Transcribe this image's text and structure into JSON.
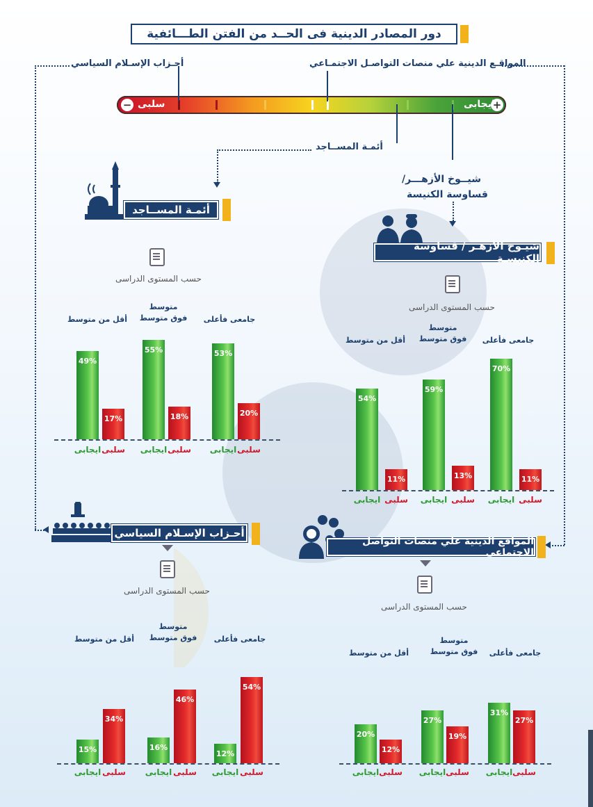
{
  "title": "دور المصادر الدينية فى الحــد من الفتن الطـــائفية",
  "gauge": {
    "negative_label": "سلبى",
    "positive_label": "ايجابى",
    "negative_sign": "−",
    "positive_sign": "+"
  },
  "gauge_labels": {
    "political_islam": "أحـزاب الإسـلام السياسي",
    "social_media": "المواقـع الدينية علي منصات التواصـل الاجتمـاعي",
    "mosque_imams": "أئمـة المســاجد",
    "azhar_clergy_line1": "شيــوخ الأزهـــر/",
    "azhar_clergy_line2": "قساوسة الكنيسة"
  },
  "sections": {
    "mosque_imams": "أئمـة المســاجد",
    "azhar_clergy": "شيـوخ الأزهـر / قساوسة الكنيسـة",
    "political_islam": "أحـزاب الإسـلام السياسي",
    "social_media": "المواقع الدينية علي منصات التواصل الاجتماعي"
  },
  "by_education_label": "حسب المستوى الدراسى",
  "categories_text": {
    "university": "جامعى فأعلى",
    "above_avg": "متوسط\nفوق متوسط",
    "below_avg": "أقل من متوسط"
  },
  "legend": {
    "positive": "ايجابى",
    "negative": "سلبى"
  },
  "colors": {
    "positive": "#2f9a35",
    "negative": "#d0182a",
    "navy": "#1d3f6e",
    "accent": "#f2b21b"
  },
  "chart_data": [
    {
      "type": "bar",
      "title": "أئمـة المســاجد",
      "categories": [
        "أقل من متوسط",
        "متوسط فوق متوسط",
        "جامعى فأعلى"
      ],
      "series": [
        {
          "name": "ايجابى",
          "values": [
            49,
            55,
            53
          ],
          "labels": [
            "49%",
            "55%",
            "53%"
          ]
        },
        {
          "name": "سلبى",
          "values": [
            17,
            18,
            20
          ],
          "labels": [
            "17%",
            "18%",
            "20%"
          ]
        }
      ]
    },
    {
      "type": "bar",
      "title": "شيـوخ الأزهـر / قساوسة الكنيسـة",
      "categories": [
        "أقل من متوسط",
        "متوسط فوق متوسط",
        "جامعى فأعلى"
      ],
      "series": [
        {
          "name": "ايجابى",
          "values": [
            54,
            59,
            70
          ],
          "labels": [
            "54%",
            "59%",
            "70%"
          ]
        },
        {
          "name": "سلبى",
          "values": [
            11,
            13,
            11
          ],
          "labels": [
            "11%",
            "13%",
            "11%"
          ]
        }
      ]
    },
    {
      "type": "bar",
      "title": "أحـزاب الإسـلام السياسي",
      "categories": [
        "أقل من متوسط",
        "متوسط فوق متوسط",
        "جامعى فأعلى"
      ],
      "series": [
        {
          "name": "ايجابى",
          "values": [
            15,
            16,
            12
          ],
          "labels": [
            "15%",
            "16%",
            "12%"
          ]
        },
        {
          "name": "سلبى",
          "values": [
            34,
            46,
            54
          ],
          "labels": [
            "34%",
            "46%",
            "54%"
          ]
        }
      ]
    },
    {
      "type": "bar",
      "title": "المواقع الدينية علي منصات التواصل الاجتماعي",
      "categories": [
        "أقل من متوسط",
        "متوسط فوق متوسط",
        "جامعى فأعلى"
      ],
      "series": [
        {
          "name": "ايجابى",
          "values": [
            20,
            27,
            31
          ],
          "labels": [
            "20%",
            "27%",
            "31%"
          ]
        },
        {
          "name": "سلبى",
          "values": [
            12,
            19,
            27
          ],
          "labels": [
            "12%",
            "19%",
            "27%"
          ]
        }
      ]
    }
  ]
}
